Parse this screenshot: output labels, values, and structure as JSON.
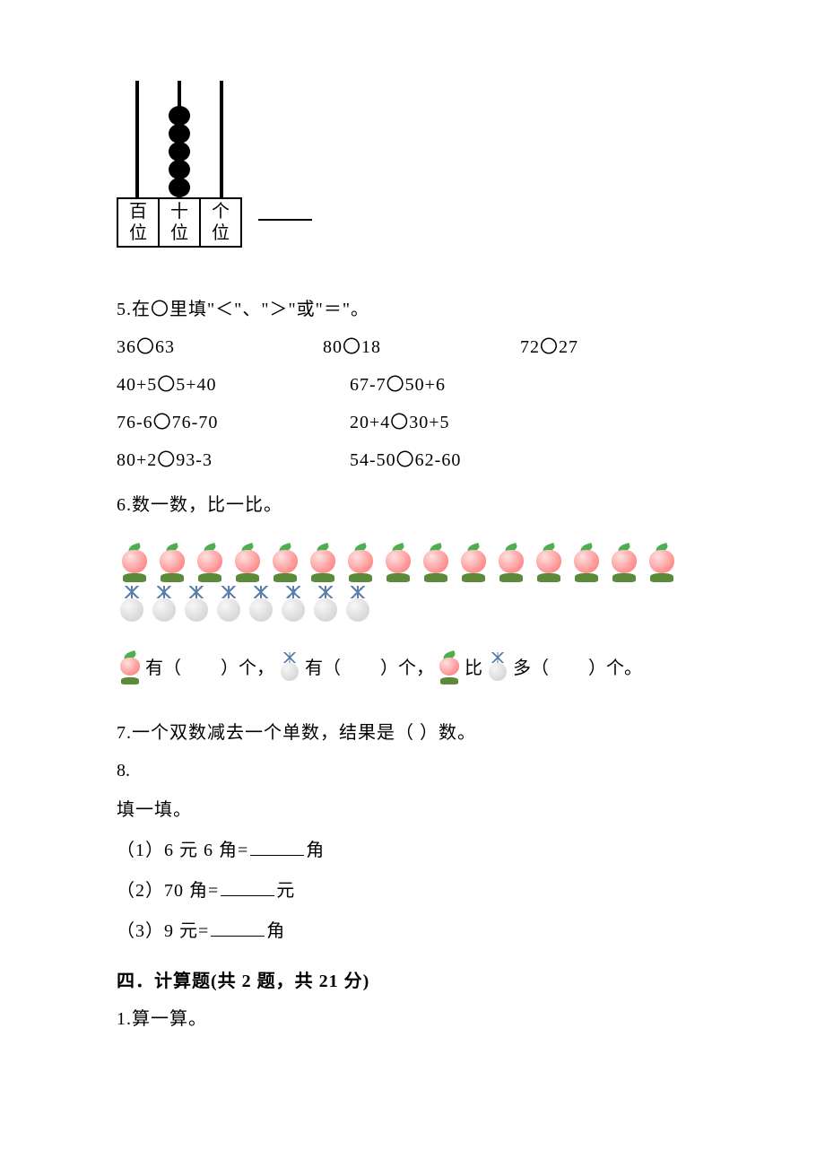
{
  "abacus": {
    "place_labels": [
      "百位",
      "十位",
      "个位"
    ],
    "beads": [
      0,
      5,
      0
    ]
  },
  "q5": {
    "prompt": "5.在〇里填\"＜\"、\"＞\"或\"＝\"。",
    "row1": [
      "36〇63",
      "80〇18",
      "72〇27"
    ],
    "rows2": [
      [
        "40+5〇5+40",
        "67-7〇50+6"
      ],
      [
        "76-6〇76-70",
        "20+4〇30+5"
      ],
      [
        "80+2〇93-3",
        "54-50〇62-60"
      ]
    ]
  },
  "q6": {
    "prompt": "6.数一数，比一比。",
    "peach_count": 15,
    "pine_count": 8,
    "line_parts": {
      "a": "有（",
      "b": "）个，",
      "c": "有（",
      "d": "）个，",
      "e": "比",
      "f": "多（",
      "g": "）个。"
    }
  },
  "q7": {
    "text": "7.一个双数减去一个单数，结果是（    ）数。"
  },
  "q8": {
    "num": "8.",
    "prompt": "填一填。",
    "items": [
      {
        "pre": "（1）6 元 6 角=",
        "suf": "角"
      },
      {
        "pre": "（2）70 角=",
        "suf": "元"
      },
      {
        "pre": "（3）9 元=",
        "suf": "角"
      }
    ]
  },
  "section4": {
    "heading": "四．计算题(共 2 题，共 21 分)",
    "q1": "1.算一算。"
  },
  "blank_text": ""
}
